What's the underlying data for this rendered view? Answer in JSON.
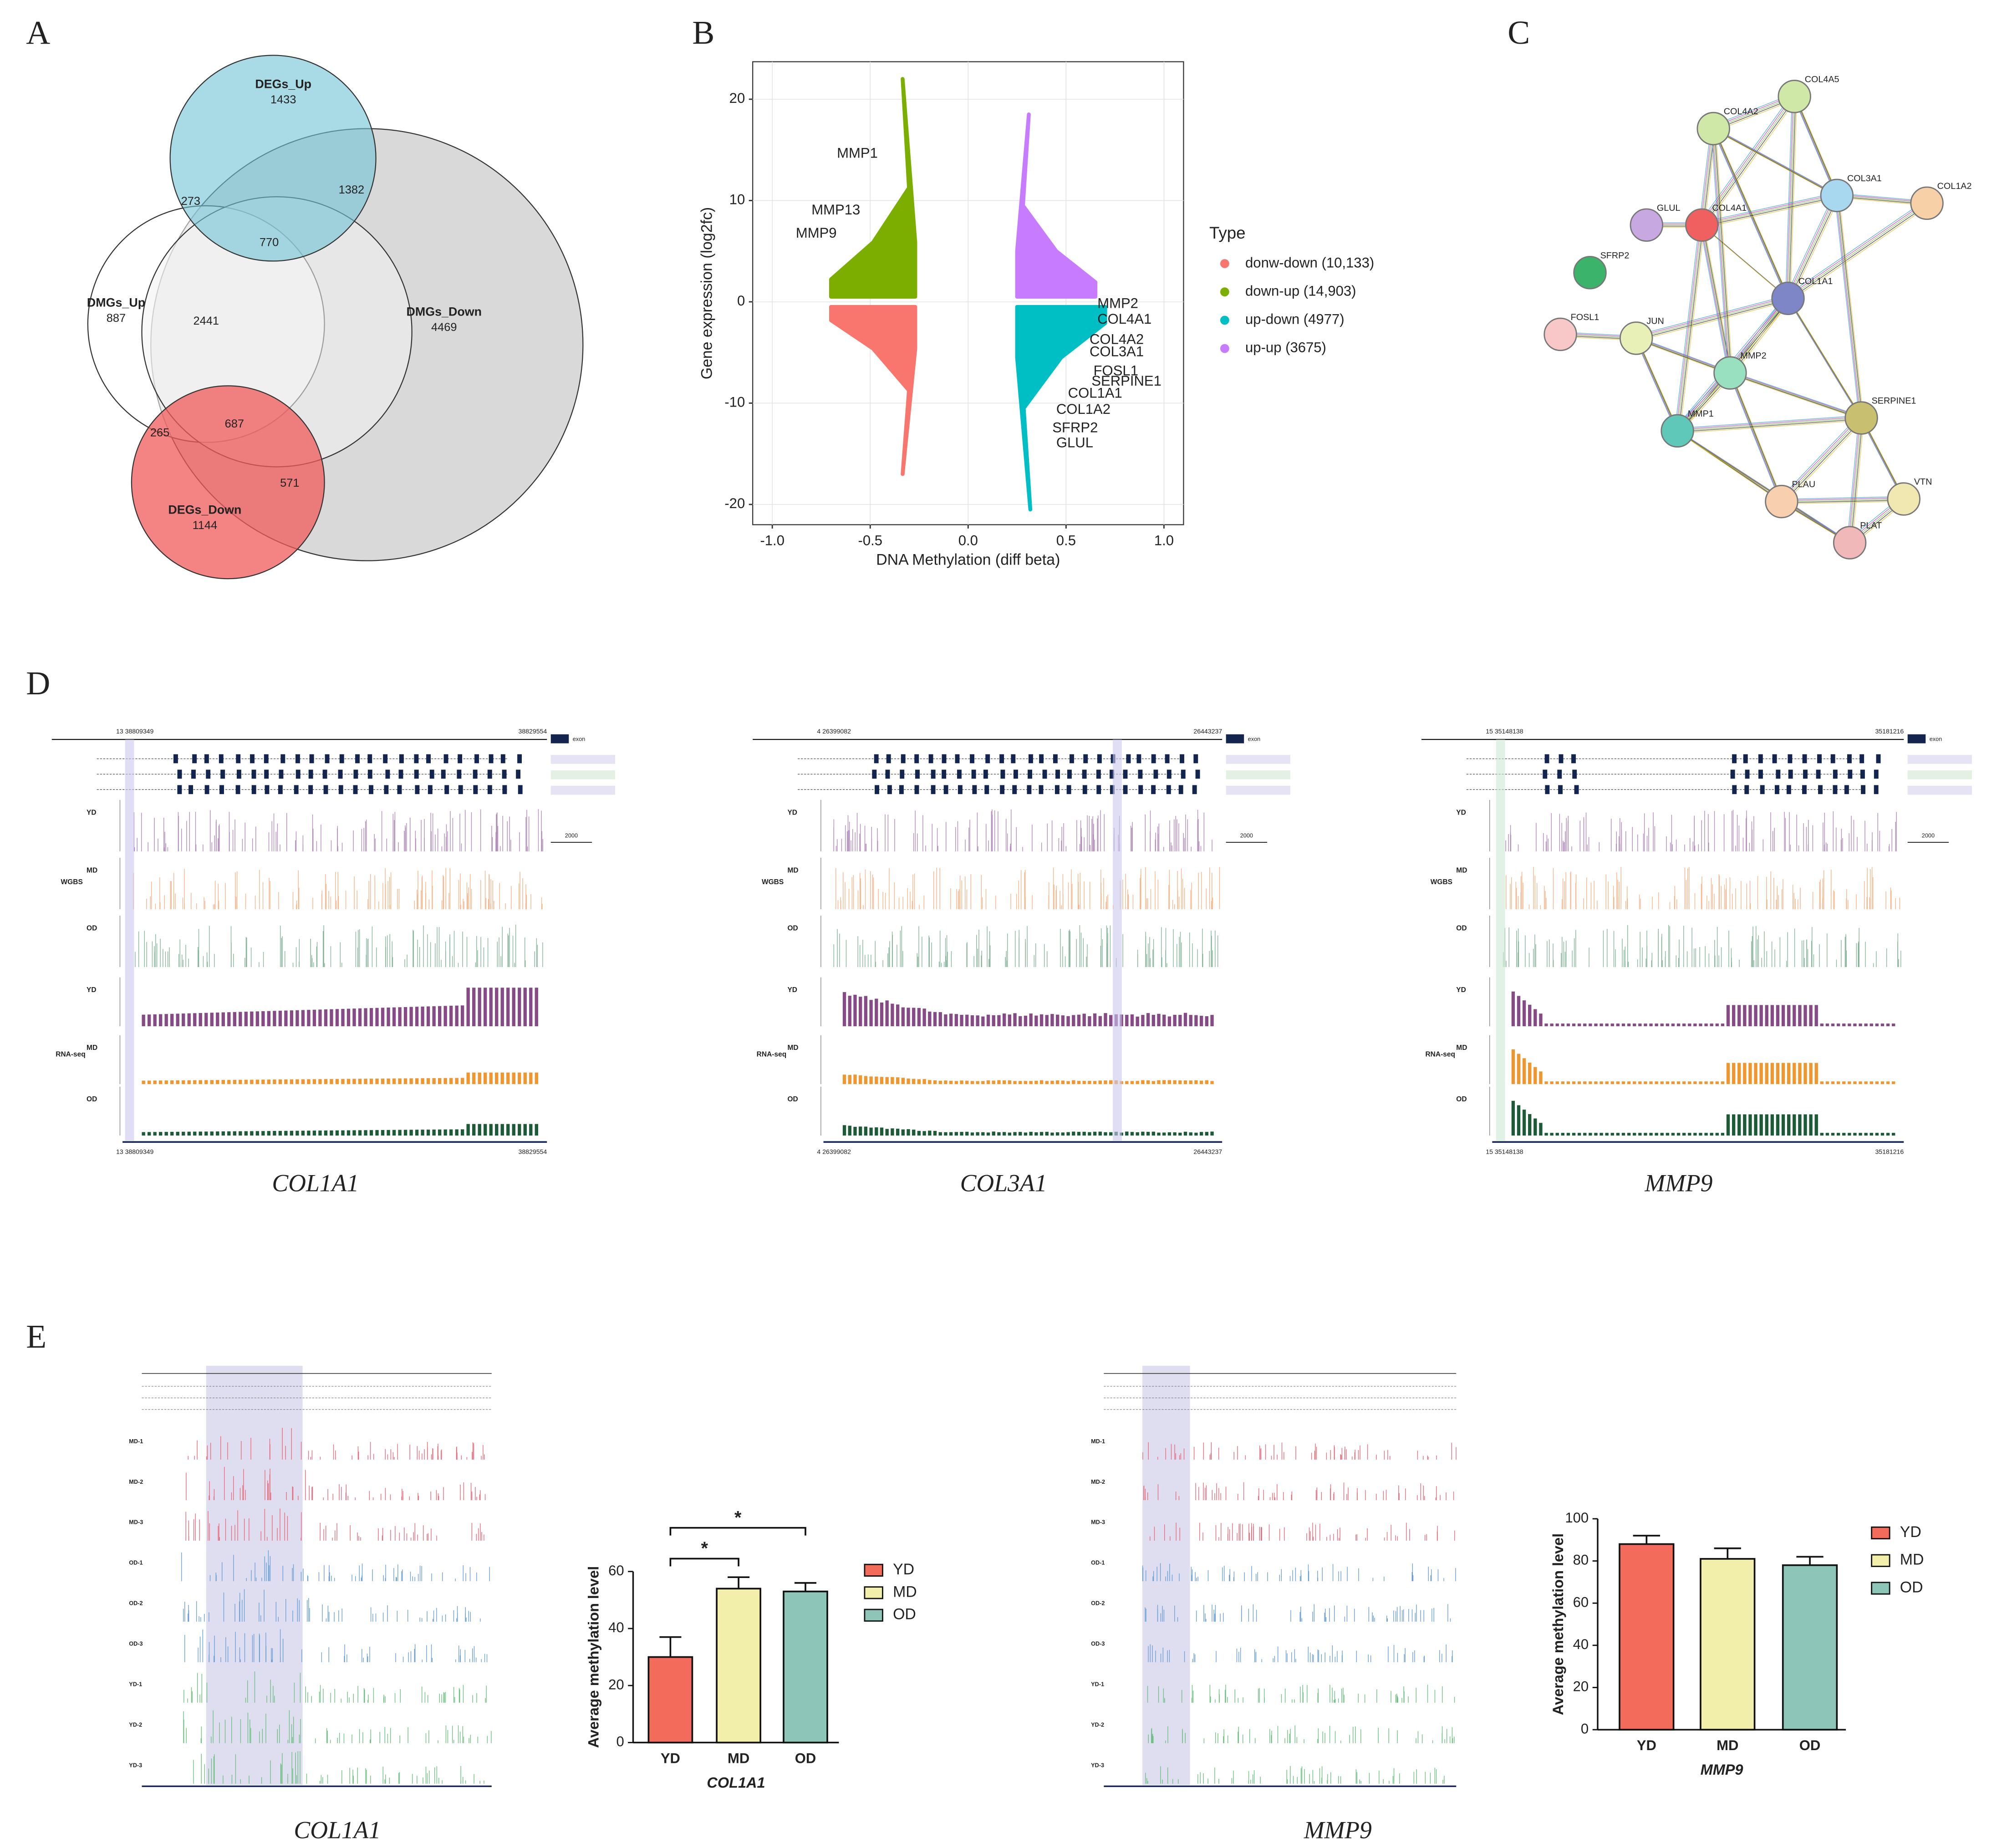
{
  "panel_labels": [
    "A",
    "B",
    "C",
    "D",
    "E"
  ],
  "venn": {
    "sets": [
      {
        "name": "DEGs_Up",
        "count": 1433
      },
      {
        "name": "DMGs_Up",
        "count": 887
      },
      {
        "name": "DMGs_Down",
        "count": 4469
      },
      {
        "name": "DEGs_Down",
        "count": 1144
      }
    ],
    "overlaps": [
      1382,
      273,
      770,
      2441,
      687,
      265,
      571
    ]
  },
  "chart_data": [
    {
      "type": "scatter",
      "x_label": "DNA Methylation (diff beta)",
      "y_label": "Gene expression (log2fc)",
      "xlim": [
        -1.1,
        1.1
      ],
      "ylim": [
        -22,
        23.7
      ],
      "xticks": [
        {
          "value": -1,
          "label": "-1.0"
        },
        {
          "value": -0.5,
          "label": "-0.5"
        },
        {
          "value": 0,
          "label": "0.0"
        },
        {
          "value": 0.5,
          "label": "0.5"
        },
        {
          "value": 1,
          "label": "1.0"
        }
      ],
      "yticks": [
        -20,
        -10,
        0,
        10,
        20
      ],
      "grid": true,
      "legend_title": "Type",
      "series": [
        {
          "name": "donw-down (10,133)",
          "color": "#f8766d",
          "x_range": [
            -0.7,
            -0.27
          ],
          "y_range": [
            -0.5,
            -17
          ]
        },
        {
          "name": "down-up (14,903)",
          "color": "#7cae00",
          "x_range": [
            -0.7,
            -0.27
          ],
          "y_range": [
            0.5,
            22
          ]
        },
        {
          "name": "up-down (4977)",
          "color": "#00bfc4",
          "x_range": [
            0.25,
            0.7
          ],
          "y_range": [
            -0.5,
            -20.5
          ]
        },
        {
          "name": "up-up (3675)",
          "color": "#c77cff",
          "x_range": [
            0.25,
            0.65
          ],
          "y_range": [
            0.5,
            18.5
          ]
        }
      ],
      "annotations": [
        {
          "text": "MMP1",
          "x": -0.67,
          "y": 14.6
        },
        {
          "text": "MMP13",
          "x": -0.8,
          "y": 9
        },
        {
          "text": "MMP9",
          "x": -0.88,
          "y": 6.7
        },
        {
          "text": "MMP2",
          "x": 0.66,
          "y": -0.25
        },
        {
          "text": "COL4A1",
          "x": 0.66,
          "y": -1.8
        },
        {
          "text": "COL4A2",
          "x": 0.62,
          "y": -3.8
        },
        {
          "text": "COL3A1",
          "x": 0.62,
          "y": -5
        },
        {
          "text": "FOSL1",
          "x": 0.64,
          "y": -6.9
        },
        {
          "text": "SERPINE1",
          "x": 0.63,
          "y": -7.9
        },
        {
          "text": "COL1A1",
          "x": 0.51,
          "y": -9.1
        },
        {
          "text": "COL1A2",
          "x": 0.45,
          "y": -10.7
        },
        {
          "text": "SFRP2",
          "x": 0.43,
          "y": -12.5
        },
        {
          "text": "GLUL",
          "x": 0.45,
          "y": -14
        }
      ]
    },
    {
      "type": "bar",
      "x_label": "COL1A1",
      "y_label": "Average methylation level",
      "categories": [
        "YD",
        "MD",
        "OD"
      ],
      "values": [
        30,
        54,
        53
      ],
      "errors": [
        7,
        4,
        3
      ],
      "colors": [
        "#f26b5b",
        "#f2efaa",
        "#8dc5b9"
      ],
      "ylim": [
        0,
        60
      ],
      "yticks": [
        0,
        20,
        40,
        60
      ],
      "significance": [
        "*",
        "*"
      ]
    },
    {
      "type": "bar",
      "x_label": "MMP9",
      "y_label": "Average methylation level",
      "categories": [
        "YD",
        "MD",
        "OD"
      ],
      "values": [
        88,
        81,
        78
      ],
      "errors": [
        4,
        5,
        4
      ],
      "colors": [
        "#f26b5b",
        "#f2efaa",
        "#8dc5b9"
      ],
      "ylim": [
        0,
        100
      ],
      "yticks": [
        0,
        20,
        40,
        60,
        80,
        100
      ]
    }
  ],
  "network": {
    "nodes": [
      "COL4A5",
      "COL4A2",
      "COL3A1",
      "COL1A2",
      "GLUL",
      "COL4A1",
      "SFRP2",
      "COL1A1",
      "FOSL1",
      "JUN",
      "MMP2",
      "SERPINE1",
      "MMP1",
      "VTN",
      "PLAU",
      "PLAT"
    ]
  },
  "browser_d": [
    {
      "gene": "COL1A1",
      "start": "13 38809349",
      "end": "38829554",
      "scale": "2000"
    },
    {
      "gene": "COL3A1",
      "start": "4 26399082",
      "end": "26443237",
      "scale": "2000"
    },
    {
      "gene": "MMP9",
      "start": "15 35148138",
      "end": "35181216",
      "scale": "2000"
    }
  ],
  "browser_tracks": {
    "assays": [
      "WGBS",
      "RNA-seq"
    ],
    "groups": [
      "YD",
      "MD",
      "OD"
    ],
    "exon_label": "exon"
  },
  "browser_e": {
    "genes": [
      "COL1A1",
      "MMP9"
    ],
    "samples": [
      "MD-1",
      "MD-2",
      "MD-3",
      "OD-1",
      "OD-2",
      "OD-3",
      "YD-1",
      "YD-2",
      "YD-3"
    ]
  }
}
